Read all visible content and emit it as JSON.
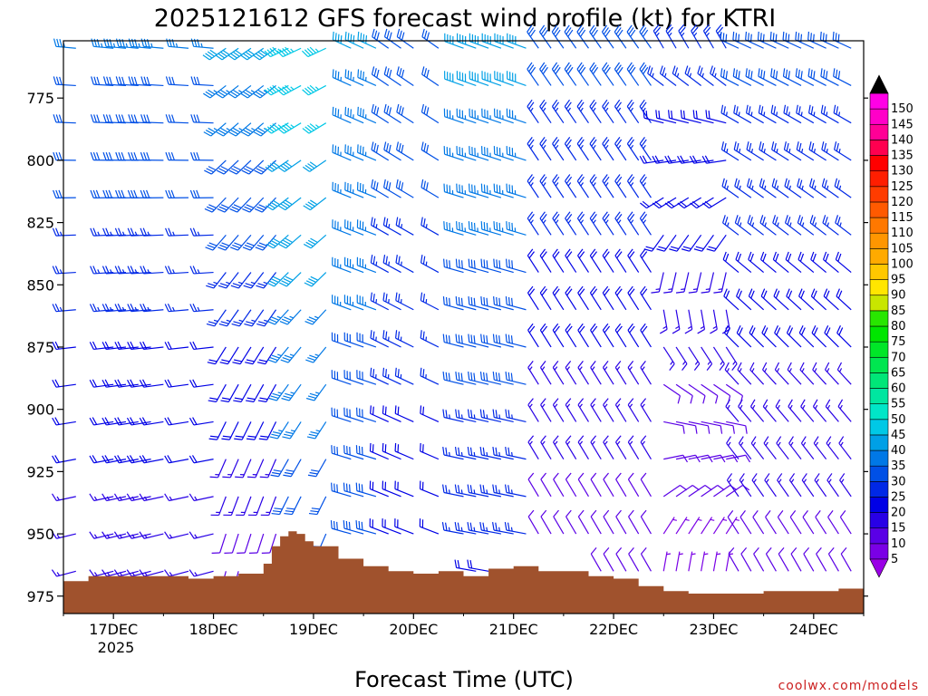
{
  "chart_data": {
    "type": "wind-barb-time-height",
    "title": "2025121612 GFS forecast wind profile (kt) for KTRI",
    "xlabel": "Forecast Time (UTC)",
    "ylabel": "",
    "credit": "coolwx.com/models",
    "x_ticks": [
      "17DEC",
      "18DEC",
      "19DEC",
      "20DEC",
      "21DEC",
      "22DEC",
      "23DEC",
      "24DEC"
    ],
    "x_year_label": "2025",
    "x_range_hours": [
      -12,
      180
    ],
    "y_ticks": [
      775,
      800,
      825,
      850,
      875,
      900,
      925,
      950,
      975
    ],
    "y_range_hpa": [
      752,
      982
    ],
    "levels_hpa": [
      755,
      770,
      785,
      800,
      815,
      830,
      845,
      860,
      875,
      890,
      905,
      920,
      935,
      950,
      965
    ],
    "times_hours": [
      -9,
      0,
      3,
      6,
      9,
      12,
      18,
      24,
      27,
      30,
      33,
      36,
      39,
      42,
      45,
      51,
      57,
      60,
      63,
      66,
      69,
      72,
      78,
      84,
      87,
      90,
      93,
      96,
      99,
      102,
      105,
      108,
      111,
      114,
      117,
      120,
      123,
      126,
      129,
      132,
      135,
      138,
      141,
      144,
      147,
      150,
      153,
      156,
      159,
      162,
      165,
      168,
      171,
      174,
      177
    ],
    "wind_note": "Direction (deg, from) and speed (kt) by forecast hour; speeds estimated from barbs",
    "wind_periods": [
      {
        "hours": [
          -12,
          27
        ],
        "dir_top": 275,
        "dir_bottom": 255,
        "spd_top": 33,
        "spd_bottom": 14
      },
      {
        "hours": [
          27,
          42
        ],
        "dir_top": 235,
        "dir_bottom": 195,
        "spd_top": 38,
        "spd_bottom": 10
      },
      {
        "hours": [
          42,
          54
        ],
        "dir_top": 245,
        "dir_bottom": 200,
        "spd_top": 46,
        "spd_bottom": 28
      },
      {
        "hours": [
          54,
          66
        ],
        "dir_top": 295,
        "dir_bottom": 285,
        "spd_top": 38,
        "spd_bottom": 27
      },
      {
        "hours": [
          66,
          84
        ],
        "dir_top": 305,
        "dir_bottom": 290,
        "spd_top": 32,
        "spd_bottom": 18
      },
      {
        "hours": [
          84,
          102
        ],
        "dir_top": 290,
        "dir_bottom": 280,
        "spd_top": 40,
        "spd_bottom": 22
      },
      {
        "hours": [
          102,
          132
        ],
        "dir_top": 325,
        "dir_bottom": 330,
        "spd_top": 30,
        "spd_bottom": 9
      },
      {
        "hours": [
          132,
          150
        ],
        "dir_top": 330,
        "dir_bottom": 10,
        "spd_top": 24,
        "spd_bottom": 6
      },
      {
        "hours": [
          150,
          180
        ],
        "dir_top": 295,
        "dir_bottom": 330,
        "spd_top": 30,
        "spd_bottom": 10
      }
    ],
    "terrain_surface_pressure": {
      "hours": [
        -12,
        -6,
        0,
        6,
        12,
        18,
        24,
        30,
        33,
        36,
        38,
        40,
        42,
        44,
        46,
        48,
        54,
        60,
        66,
        72,
        78,
        84,
        90,
        96,
        102,
        108,
        114,
        120,
        126,
        132,
        138,
        144,
        150,
        156,
        162,
        168,
        174,
        180
      ],
      "hpa": [
        969,
        967,
        967,
        967,
        967,
        968,
        967,
        966,
        966,
        962,
        955,
        951,
        949,
        950,
        953,
        955,
        960,
        963,
        965,
        966,
        965,
        967,
        964,
        963,
        965,
        965,
        967,
        968,
        971,
        973,
        974,
        974,
        974,
        973,
        973,
        973,
        972,
        972
      ]
    },
    "colorbar": {
      "labels": [
        5,
        10,
        15,
        20,
        25,
        30,
        35,
        40,
        45,
        50,
        55,
        60,
        65,
        70,
        75,
        80,
        85,
        90,
        95,
        100,
        105,
        110,
        115,
        120,
        125,
        130,
        135,
        140,
        145,
        150
      ],
      "colors": [
        "#7a00e6",
        "#5a00e6",
        "#2800e6",
        "#0000e6",
        "#0028e6",
        "#0050e6",
        "#0078e6",
        "#00a0e6",
        "#00c8e6",
        "#00e6c8",
        "#00e6a0",
        "#00e678",
        "#00e650",
        "#00e628",
        "#00e600",
        "#28e600",
        "#c8e600",
        "#ffe600",
        "#ffc800",
        "#ffaa00",
        "#ff9600",
        "#ff7800",
        "#ff5a00",
        "#ff3c00",
        "#ff1e00",
        "#ff0000",
        "#ff0050",
        "#ff0096",
        "#ff00c8",
        "#ff00e6"
      ],
      "underflow_color": "#9a00e6",
      "overflow_color": "#000000"
    },
    "terrain_color": "#a0522d"
  }
}
